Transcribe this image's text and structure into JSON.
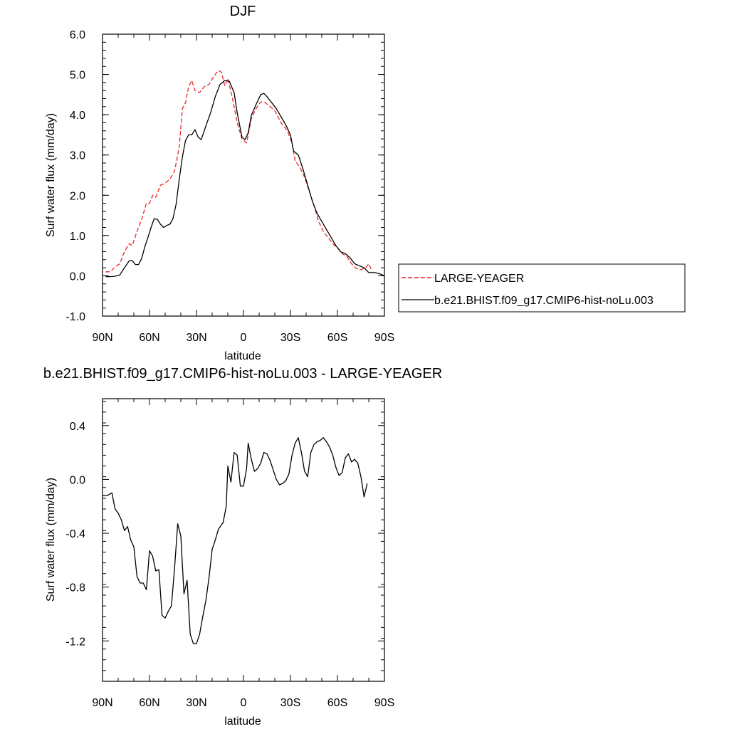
{
  "chart_data": [
    {
      "type": "line",
      "title": "DJF",
      "xlabel": "latitude",
      "ylabel": "Surf water flux (mm/day)",
      "xlim": [
        90,
        -90
      ],
      "ylim": [
        -1.0,
        6.0
      ],
      "x_ticks": [
        90,
        60,
        30,
        0,
        -30,
        -60,
        -90
      ],
      "x_tick_labels": [
        "90N",
        "60N",
        "30N",
        "0",
        "30S",
        "60S",
        "90S"
      ],
      "y_ticks": [
        -1.0,
        0.0,
        1.0,
        2.0,
        3.0,
        4.0,
        5.0,
        6.0
      ],
      "y_tick_labels": [
        "-1.0",
        "0.0",
        "1.0",
        "2.0",
        "3.0",
        "4.0",
        "5.0",
        "6.0"
      ],
      "grid": false,
      "legend_position": "right",
      "series": [
        {
          "name": "LARGE-YEAGER",
          "color": "#e8262a",
          "dash": "dashed",
          "points": [
            [
              88,
              0.1
            ],
            [
              85,
              0.1
            ],
            [
              82,
              0.22
            ],
            [
              79,
              0.3
            ],
            [
              76,
              0.6
            ],
            [
              73,
              0.8
            ],
            [
              71,
              0.75
            ],
            [
              68,
              1.1
            ],
            [
              65,
              1.4
            ],
            [
              62,
              1.8
            ],
            [
              60,
              1.8
            ],
            [
              58,
              2.0
            ],
            [
              56,
              1.95
            ],
            [
              53,
              2.25
            ],
            [
              50,
              2.3
            ],
            [
              47,
              2.4
            ],
            [
              44,
              2.6
            ],
            [
              41,
              3.2
            ],
            [
              39,
              4.15
            ],
            [
              37,
              4.3
            ],
            [
              35,
              4.7
            ],
            [
              33,
              4.85
            ],
            [
              31,
              4.6
            ],
            [
              28,
              4.55
            ],
            [
              25,
              4.7
            ],
            [
              22,
              4.75
            ],
            [
              19,
              4.95
            ],
            [
              16,
              5.1
            ],
            [
              14,
              5.05
            ],
            [
              12,
              4.72
            ],
            [
              10,
              4.9
            ],
            [
              7,
              4.4
            ],
            [
              4,
              3.8
            ],
            [
              1,
              3.4
            ],
            [
              -2,
              3.3
            ],
            [
              -5,
              3.9
            ],
            [
              -8,
              4.15
            ],
            [
              -11,
              4.32
            ],
            [
              -14,
              4.3
            ],
            [
              -17,
              4.2
            ],
            [
              -20,
              4.1
            ],
            [
              -24,
              3.8
            ],
            [
              -28,
              3.6
            ],
            [
              -31,
              3.3
            ],
            [
              -33,
              2.85
            ],
            [
              -36,
              2.7
            ],
            [
              -39,
              2.45
            ],
            [
              -42,
              2.1
            ],
            [
              -45,
              1.75
            ],
            [
              -48,
              1.35
            ],
            [
              -51,
              1.1
            ],
            [
              -54,
              0.95
            ],
            [
              -57,
              0.8
            ],
            [
              -60,
              0.7
            ],
            [
              -63,
              0.55
            ],
            [
              -66,
              0.48
            ],
            [
              -69,
              0.3
            ],
            [
              -72,
              0.18
            ],
            [
              -75,
              0.15
            ],
            [
              -78,
              0.2
            ],
            [
              -80,
              0.3
            ],
            [
              -82,
              0.12
            ]
          ]
        },
        {
          "name": "b.e21.BHIST.f09_g17.CMIP6-hist-noLu.003",
          "color": "#000000",
          "dash": "solid",
          "points": [
            [
              88,
              -0.02
            ],
            [
              85,
              -0.02
            ],
            [
              82,
              -0.01
            ],
            [
              79,
              0.02
            ],
            [
              76,
              0.2
            ],
            [
              73,
              0.37
            ],
            [
              71,
              0.38
            ],
            [
              69,
              0.28
            ],
            [
              67,
              0.28
            ],
            [
              65,
              0.43
            ],
            [
              63,
              0.72
            ],
            [
              61,
              0.95
            ],
            [
              59,
              1.2
            ],
            [
              57,
              1.42
            ],
            [
              55,
              1.4
            ],
            [
              53,
              1.28
            ],
            [
              51,
              1.2
            ],
            [
              49,
              1.25
            ],
            [
              47,
              1.28
            ],
            [
              45,
              1.42
            ],
            [
              43,
              1.78
            ],
            [
              41,
              2.4
            ],
            [
              39,
              2.95
            ],
            [
              37,
              3.36
            ],
            [
              35,
              3.5
            ],
            [
              33,
              3.5
            ],
            [
              31,
              3.63
            ],
            [
              29,
              3.45
            ],
            [
              27,
              3.38
            ],
            [
              24,
              3.72
            ],
            [
              21,
              4.05
            ],
            [
              18,
              4.45
            ],
            [
              15,
              4.75
            ],
            [
              12,
              4.85
            ],
            [
              9,
              4.83
            ],
            [
              6,
              4.55
            ],
            [
              4,
              4.05
            ],
            [
              1,
              3.45
            ],
            [
              -1,
              3.38
            ],
            [
              -3,
              3.55
            ],
            [
              -5,
              3.98
            ],
            [
              -8,
              4.25
            ],
            [
              -11,
              4.5
            ],
            [
              -13,
              4.53
            ],
            [
              -15,
              4.45
            ],
            [
              -18,
              4.3
            ],
            [
              -21,
              4.15
            ],
            [
              -24,
              3.95
            ],
            [
              -27,
              3.75
            ],
            [
              -30,
              3.5
            ],
            [
              -32,
              3.1
            ],
            [
              -35,
              3.0
            ],
            [
              -38,
              2.65
            ],
            [
              -41,
              2.25
            ],
            [
              -44,
              1.85
            ],
            [
              -47,
              1.55
            ],
            [
              -50,
              1.35
            ],
            [
              -53,
              1.15
            ],
            [
              -56,
              0.95
            ],
            [
              -59,
              0.75
            ],
            [
              -62,
              0.6
            ],
            [
              -65,
              0.55
            ],
            [
              -68,
              0.45
            ],
            [
              -71,
              0.3
            ],
            [
              -74,
              0.25
            ],
            [
              -77,
              0.2
            ],
            [
              -80,
              0.08
            ],
            [
              -84,
              0.08
            ],
            [
              -87,
              0.05
            ],
            [
              -90,
              0.0
            ]
          ]
        }
      ]
    },
    {
      "type": "line",
      "title": "b.e21.BHIST.f09_g17.CMIP6-hist-noLu.003 - LARGE-YEAGER",
      "xlabel": "latitude",
      "ylabel": "Surf water flux (mm/day)",
      "xlim": [
        90,
        -90
      ],
      "ylim": [
        -1.5,
        0.6
      ],
      "x_ticks": [
        90,
        60,
        30,
        0,
        -30,
        -60,
        -90
      ],
      "x_tick_labels": [
        "90N",
        "60N",
        "30N",
        "0",
        "30S",
        "60S",
        "90S"
      ],
      "y_ticks": [
        -1.2,
        -0.8,
        -0.4,
        0.0,
        0.4
      ],
      "y_tick_labels": [
        "-1.2",
        "-0.8",
        "-0.4",
        "0.0",
        "0.4"
      ],
      "grid": false,
      "series": [
        {
          "color": "#000000",
          "dash": "solid",
          "points": [
            [
              90,
              -0.12
            ],
            [
              87,
              -0.12
            ],
            [
              84,
              -0.1
            ],
            [
              82,
              -0.22
            ],
            [
              80,
              -0.25
            ],
            [
              78,
              -0.3
            ],
            [
              76,
              -0.38
            ],
            [
              74,
              -0.35
            ],
            [
              72,
              -0.45
            ],
            [
              70,
              -0.5
            ],
            [
              68,
              -0.72
            ],
            [
              66,
              -0.77
            ],
            [
              64,
              -0.77
            ],
            [
              62,
              -0.82
            ],
            [
              60,
              -0.53
            ],
            [
              58,
              -0.57
            ],
            [
              56,
              -0.68
            ],
            [
              54,
              -0.67
            ],
            [
              52,
              -1.01
            ],
            [
              50,
              -1.03
            ],
            [
              48,
              -0.98
            ],
            [
              46,
              -0.94
            ],
            [
              44,
              -0.66
            ],
            [
              42,
              -0.33
            ],
            [
              40,
              -0.42
            ],
            [
              38,
              -0.85
            ],
            [
              36,
              -0.75
            ],
            [
              34,
              -1.15
            ],
            [
              32,
              -1.22
            ],
            [
              30,
              -1.22
            ],
            [
              28,
              -1.15
            ],
            [
              26,
              -1.02
            ],
            [
              24,
              -0.9
            ],
            [
              22,
              -0.73
            ],
            [
              20,
              -0.52
            ],
            [
              18,
              -0.45
            ],
            [
              16,
              -0.37
            ],
            [
              13,
              -0.32
            ],
            [
              11,
              -0.2
            ],
            [
              10,
              0.1
            ],
            [
              8,
              -0.02
            ],
            [
              6,
              0.2
            ],
            [
              4,
              0.18
            ],
            [
              2,
              -0.05
            ],
            [
              0,
              -0.05
            ],
            [
              -2,
              0.08
            ],
            [
              -3,
              0.27
            ],
            [
              -5,
              0.15
            ],
            [
              -7,
              0.06
            ],
            [
              -9,
              0.08
            ],
            [
              -11,
              0.12
            ],
            [
              -13,
              0.2
            ],
            [
              -15,
              0.19
            ],
            [
              -17,
              0.14
            ],
            [
              -19,
              0.07
            ],
            [
              -21,
              0.0
            ],
            [
              -23,
              -0.04
            ],
            [
              -25,
              -0.03
            ],
            [
              -27,
              -0.01
            ],
            [
              -29,
              0.04
            ],
            [
              -31,
              0.18
            ],
            [
              -33,
              0.27
            ],
            [
              -35,
              0.31
            ],
            [
              -37,
              0.2
            ],
            [
              -39,
              0.06
            ],
            [
              -41,
              0.02
            ],
            [
              -43,
              0.2
            ],
            [
              -45,
              0.26
            ],
            [
              -47,
              0.28
            ],
            [
              -49,
              0.29
            ],
            [
              -51,
              0.31
            ],
            [
              -53,
              0.28
            ],
            [
              -55,
              0.24
            ],
            [
              -57,
              0.18
            ],
            [
              -59,
              0.09
            ],
            [
              -61,
              0.03
            ],
            [
              -63,
              0.05
            ],
            [
              -65,
              0.16
            ],
            [
              -67,
              0.19
            ],
            [
              -69,
              0.13
            ],
            [
              -71,
              0.15
            ],
            [
              -73,
              0.12
            ],
            [
              -75,
              0.02
            ],
            [
              -77,
              -0.13
            ],
            [
              -79,
              -0.03
            ]
          ]
        }
      ]
    }
  ]
}
